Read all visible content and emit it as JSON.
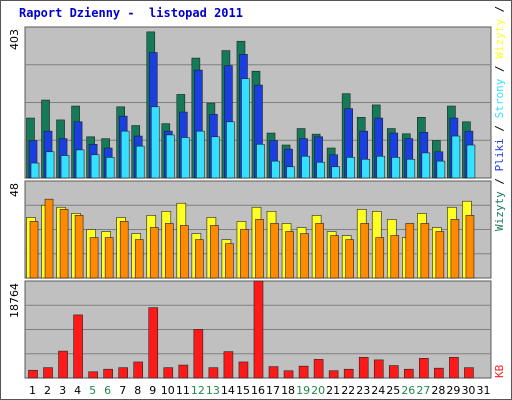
{
  "title": "Raport Dzienny -  listopad 2011",
  "colors": {
    "background": "#c0c0c0",
    "grid": "#808080",
    "title": "#0000cc",
    "visits": "#147a5a",
    "pages": "#1a3fe0",
    "files": "#33e0ff",
    "kb_bytes": "#ffff22",
    "sites": "#ff8a00",
    "hits": "#ff1a1a",
    "weekend_day": "#1f8a4a",
    "weekday": "#000000"
  },
  "right_legend_top": [
    {
      "text": "Wizyty",
      "color": "#147a5a"
    },
    {
      "text": " / ",
      "color": "#000000"
    },
    {
      "text": "Pliki",
      "color": "#1a3fe0"
    },
    {
      "text": " / ",
      "color": "#000000"
    },
    {
      "text": "Strony",
      "color": "#33e0ff"
    },
    {
      "text": " / ",
      "color": "#000000"
    },
    {
      "text": "Wizyty",
      "color": "#ffff22"
    },
    {
      "text": " / ",
      "color": "#000000"
    },
    {
      "text": "Lokalizacje",
      "color": "#ff8a00"
    }
  ],
  "right_legend_bottom": "KB",
  "chart_data": [
    {
      "type": "bar",
      "panel": "top",
      "ymax_label": "403",
      "ymax": 403,
      "categories": [
        "1",
        "2",
        "3",
        "4",
        "5",
        "6",
        "7",
        "8",
        "9",
        "10",
        "11",
        "12",
        "13",
        "14",
        "15",
        "16",
        "17",
        "18",
        "19",
        "20",
        "21",
        "22",
        "23",
        "24",
        "25",
        "26",
        "27",
        "28",
        "29",
        "30",
        "31"
      ],
      "weekend_days": [
        "5",
        "6",
        "12",
        "13",
        "19",
        "20",
        "26",
        "27"
      ],
      "series": [
        {
          "name": "Wizyty",
          "values": [
            160,
            208,
            155,
            192,
            110,
            105,
            190,
            140,
            390,
            145,
            223,
            320,
            200,
            340,
            365,
            285,
            120,
            88,
            132,
            117,
            80,
            225,
            162,
            195,
            132,
            118,
            162,
            100,
            192,
            150,
            0
          ]
        },
        {
          "name": "Pliki",
          "values": [
            100,
            125,
            105,
            150,
            90,
            80,
            165,
            112,
            335,
            125,
            176,
            288,
            170,
            300,
            330,
            248,
            100,
            77,
            105,
            110,
            62,
            185,
            125,
            160,
            120,
            105,
            122,
            70,
            160,
            125,
            0
          ]
        },
        {
          "name": "Strony",
          "values": [
            40,
            70,
            60,
            75,
            62,
            55,
            125,
            85,
            190,
            115,
            108,
            125,
            110,
            150,
            265,
            90,
            45,
            30,
            58,
            42,
            30,
            55,
            50,
            58,
            55,
            50,
            67,
            45,
            112,
            88,
            0
          ]
        }
      ]
    },
    {
      "type": "bar",
      "panel": "middle",
      "ymax_label": "48",
      "ymax": 48,
      "categories": [
        "1",
        "2",
        "3",
        "4",
        "5",
        "6",
        "7",
        "8",
        "9",
        "10",
        "11",
        "12",
        "13",
        "14",
        "15",
        "16",
        "17",
        "18",
        "19",
        "20",
        "21",
        "22",
        "23",
        "24",
        "25",
        "26",
        "27",
        "28",
        "29",
        "30",
        "31"
      ],
      "series": [
        {
          "name": "Wizyty",
          "values": [
            30,
            36,
            35,
            32,
            24,
            23,
            30,
            22,
            31,
            33,
            37,
            22,
            30,
            19,
            28,
            35,
            33,
            27,
            25,
            31,
            23,
            21,
            34,
            33,
            29,
            20,
            32,
            25,
            35,
            38,
            0
          ]
        },
        {
          "name": "Lokalizacje",
          "values": [
            28,
            39,
            34,
            31,
            20,
            20,
            28,
            19,
            25,
            27,
            26,
            19,
            26,
            17,
            24,
            29,
            27,
            23,
            22,
            27,
            21,
            19,
            27,
            20,
            21,
            27,
            27,
            23,
            29,
            31,
            0
          ]
        }
      ]
    },
    {
      "type": "bar",
      "panel": "bottom",
      "ymax_label": "18764",
      "ymax": 18764,
      "categories": [
        "1",
        "2",
        "3",
        "4",
        "5",
        "6",
        "7",
        "8",
        "9",
        "10",
        "11",
        "12",
        "13",
        "14",
        "15",
        "16",
        "17",
        "18",
        "19",
        "20",
        "21",
        "22",
        "23",
        "24",
        "25",
        "26",
        "27",
        "28",
        "29",
        "30",
        "31"
      ],
      "series": [
        {
          "name": "KB",
          "values": [
            1500,
            2000,
            5200,
            12200,
            1200,
            1700,
            2000,
            3100,
            13600,
            2000,
            2500,
            9400,
            2000,
            5100,
            3100,
            18764,
            2200,
            1400,
            2300,
            3600,
            1400,
            1700,
            4000,
            3500,
            2400,
            1700,
            3800,
            1900,
            4000,
            2000,
            0
          ]
        }
      ]
    }
  ]
}
